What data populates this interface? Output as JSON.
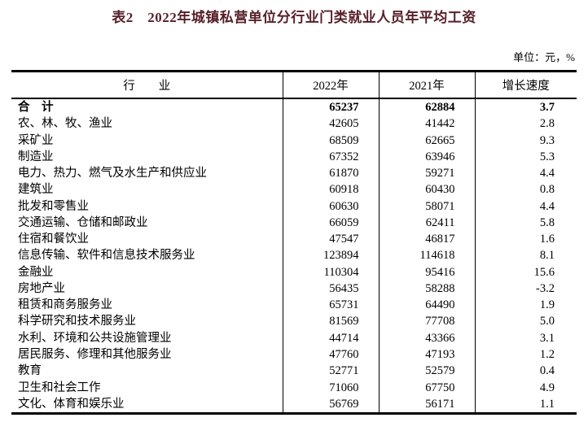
{
  "page_title": "表2　2022年城镇私营单位分行业门类就业人员年平均工资",
  "unit_label": "单位：元，%",
  "colors": {
    "title_text": "#561f27",
    "body_text": "#000000",
    "table_border": "#000000",
    "background": "#ffffff"
  },
  "table": {
    "headers": {
      "industry": "行　　业",
      "y2022": "2022年",
      "y2021": "2021年",
      "growth": "增长速度"
    },
    "rows": [
      {
        "industry": "合　计",
        "y2022": "65237",
        "y2021": "62884",
        "growth": "3.7",
        "bold": true
      },
      {
        "industry": "农、林、牧、渔业",
        "y2022": "42605",
        "y2021": "41442",
        "growth": "2.8",
        "bold": false
      },
      {
        "industry": "采矿业",
        "y2022": "68509",
        "y2021": "62665",
        "growth": "9.3",
        "bold": false
      },
      {
        "industry": "制造业",
        "y2022": "67352",
        "y2021": "63946",
        "growth": "5.3",
        "bold": false
      },
      {
        "industry": "电力、热力、燃气及水生产和供应业",
        "y2022": "61870",
        "y2021": "59271",
        "growth": "4.4",
        "bold": false
      },
      {
        "industry": "建筑业",
        "y2022": "60918",
        "y2021": "60430",
        "growth": "0.8",
        "bold": false
      },
      {
        "industry": "批发和零售业",
        "y2022": "60630",
        "y2021": "58071",
        "growth": "4.4",
        "bold": false
      },
      {
        "industry": "交通运输、仓储和邮政业",
        "y2022": "66059",
        "y2021": "62411",
        "growth": "5.8",
        "bold": false
      },
      {
        "industry": "住宿和餐饮业",
        "y2022": "47547",
        "y2021": "46817",
        "growth": "1.6",
        "bold": false
      },
      {
        "industry": "信息传输、软件和信息技术服务业",
        "y2022": "123894",
        "y2021": "114618",
        "growth": "8.1",
        "bold": false
      },
      {
        "industry": "金融业",
        "y2022": "110304",
        "y2021": "95416",
        "growth": "15.6",
        "bold": false
      },
      {
        "industry": "房地产业",
        "y2022": "56435",
        "y2021": "58288",
        "growth": "-3.2",
        "bold": false
      },
      {
        "industry": "租赁和商务服务业",
        "y2022": "65731",
        "y2021": "64490",
        "growth": "1.9",
        "bold": false
      },
      {
        "industry": "科学研究和技术服务业",
        "y2022": "81569",
        "y2021": "77708",
        "growth": "5.0",
        "bold": false
      },
      {
        "industry": "水利、环境和公共设施管理业",
        "y2022": "44714",
        "y2021": "43366",
        "growth": "3.1",
        "bold": false
      },
      {
        "industry": "居民服务、修理和其他服务业",
        "y2022": "47760",
        "y2021": "47193",
        "growth": "1.2",
        "bold": false
      },
      {
        "industry": "教育",
        "y2022": "52771",
        "y2021": "52579",
        "growth": "0.4",
        "bold": false
      },
      {
        "industry": "卫生和社会工作",
        "y2022": "71060",
        "y2021": "67750",
        "growth": "4.9",
        "bold": false
      },
      {
        "industry": "文化、体育和娱乐业",
        "y2022": "56769",
        "y2021": "56171",
        "growth": "1.1",
        "bold": false
      }
    ]
  }
}
